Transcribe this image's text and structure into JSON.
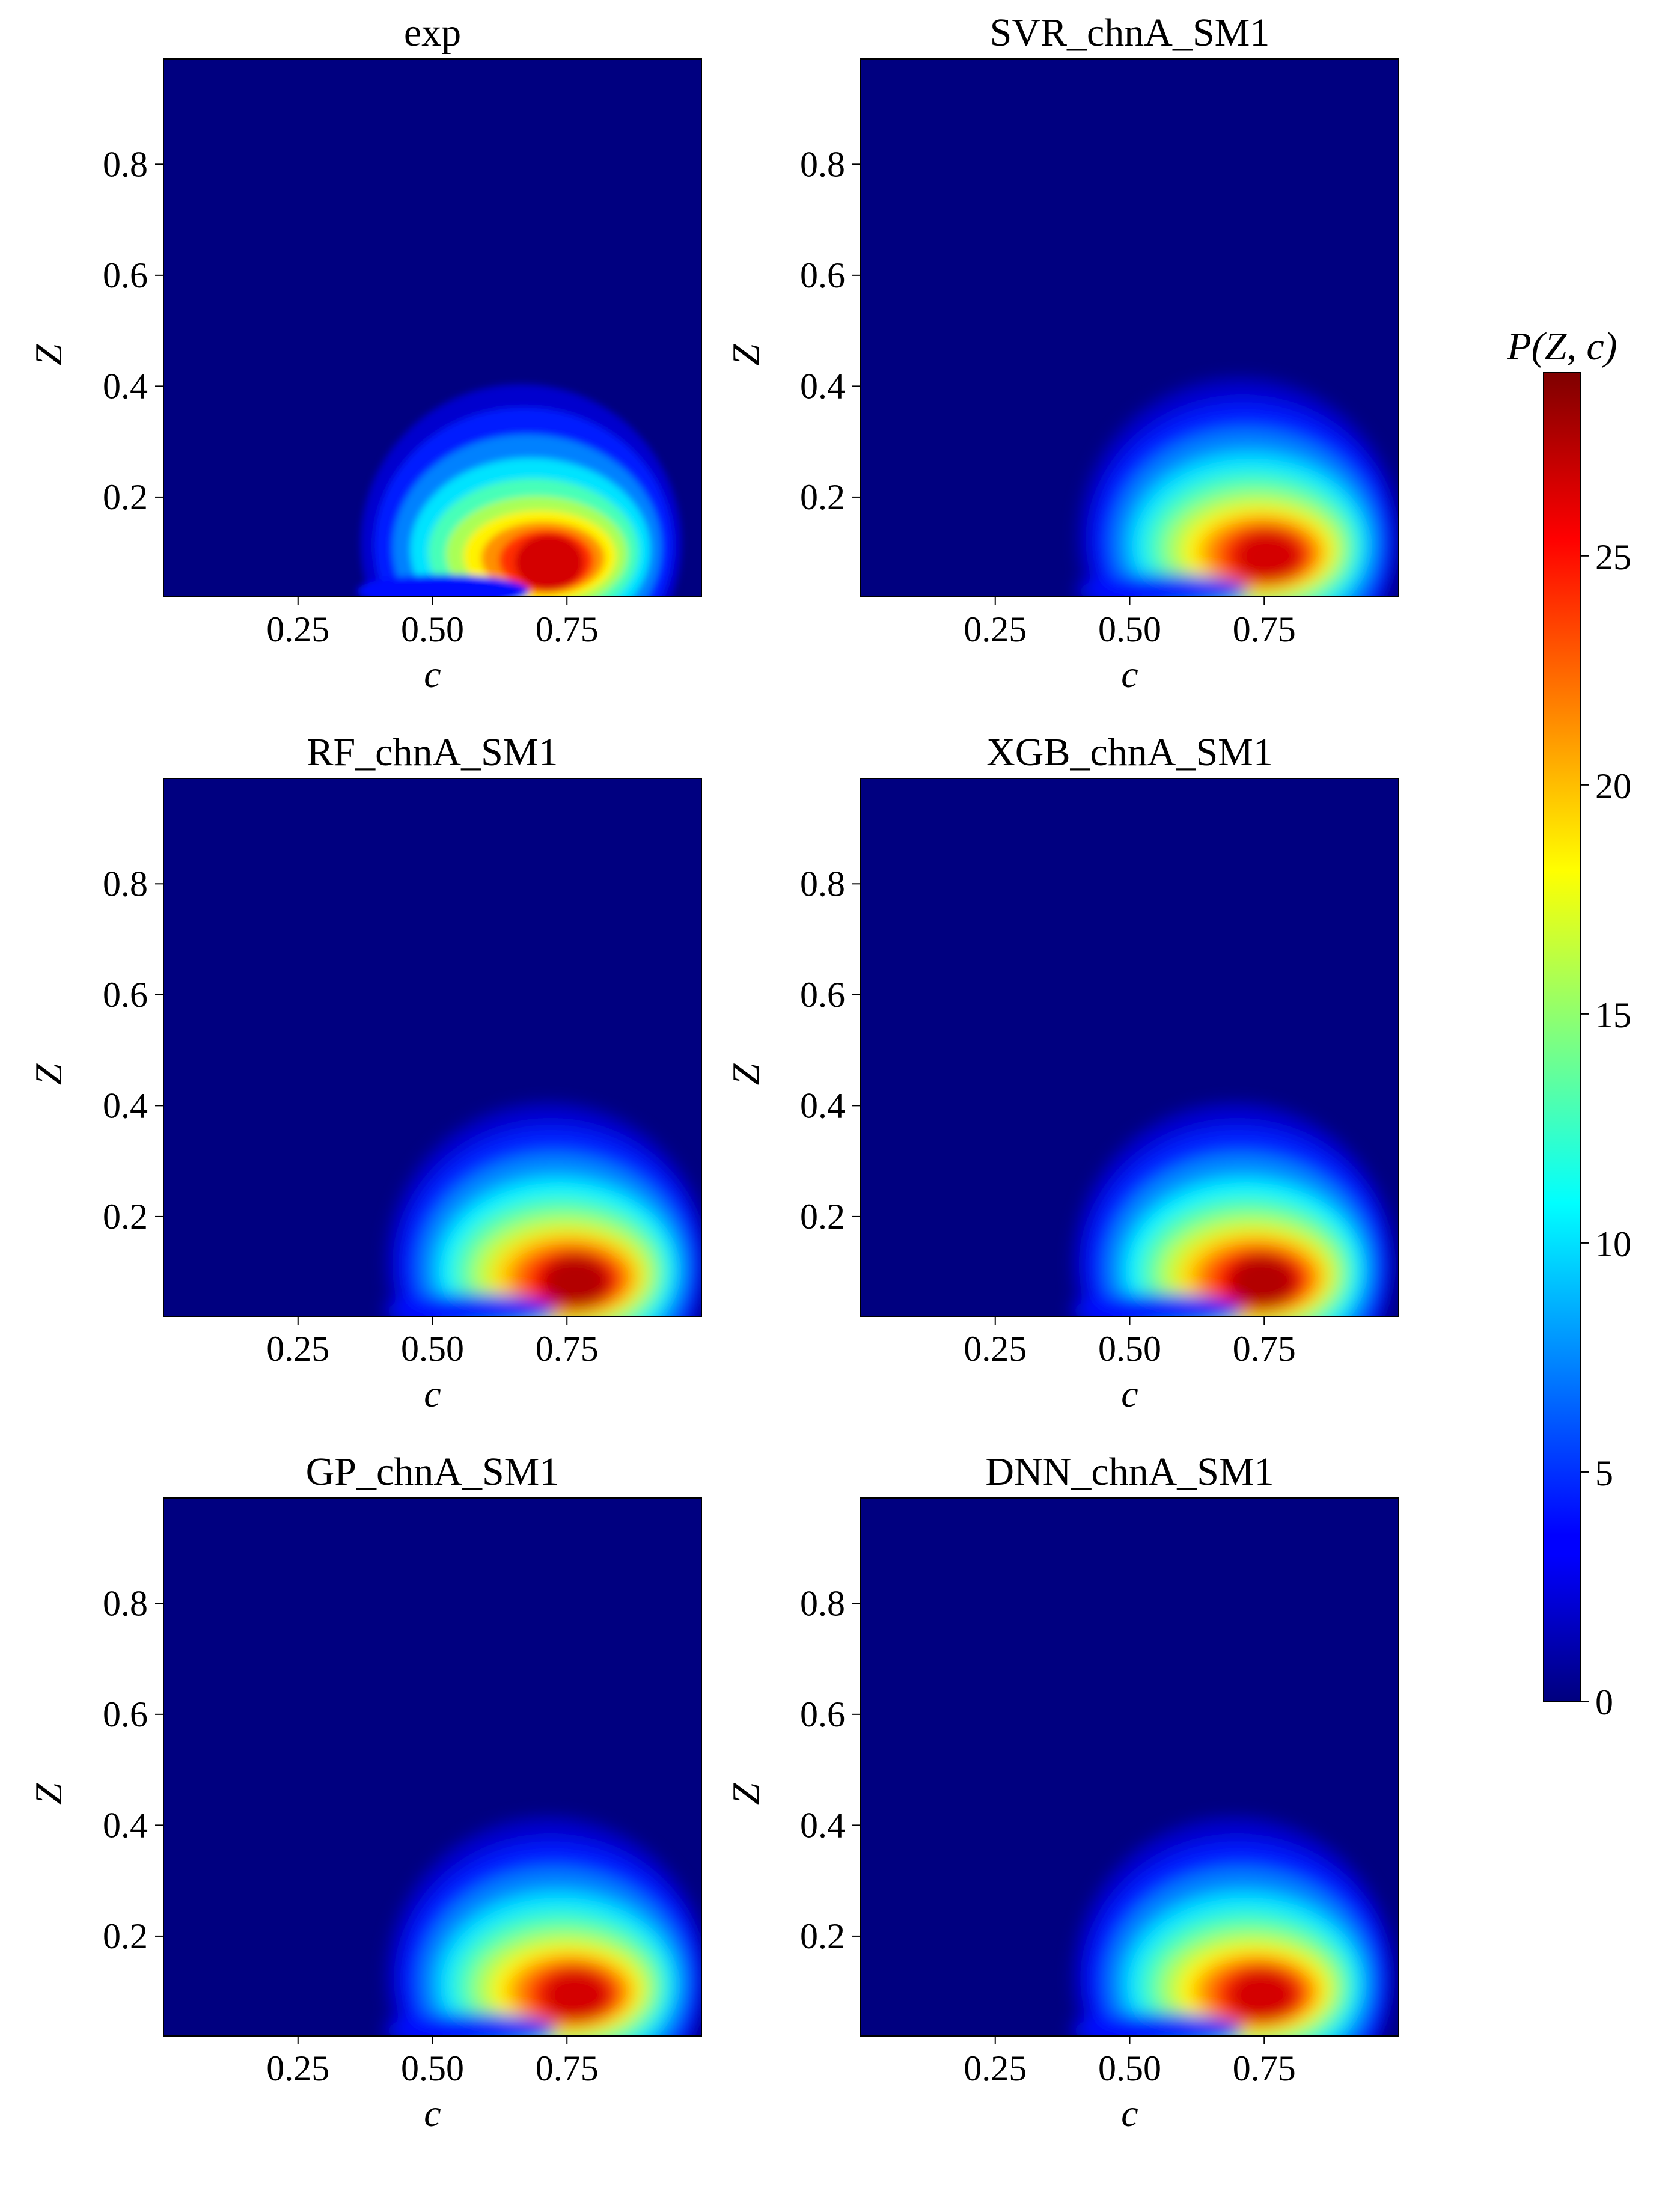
{
  "chart_data": {
    "type": "heatmap",
    "colormap": "jet",
    "colorbar": {
      "label": "P(Z, c)",
      "range": [
        0,
        29
      ],
      "ticks": [
        0,
        5,
        10,
        15,
        20,
        25
      ]
    },
    "panels": [
      {
        "title": "exp",
        "xlabel": "c",
        "ylabel": "Z",
        "xlim": [
          0.0,
          1.0
        ],
        "ylim": [
          0.02,
          0.99
        ],
        "xticks": [
          "0.25",
          "0.50",
          "0.75"
        ],
        "yticks": [
          "0.2",
          "0.4",
          "0.6",
          "0.8"
        ],
        "peak_c": 0.72,
        "peak_Z": 0.08,
        "peak_value": 28
      },
      {
        "title": "SVR_chnA_SM1",
        "xlabel": "c",
        "ylabel": "Z",
        "xlim": [
          0.0,
          1.0
        ],
        "ylim": [
          0.02,
          0.99
        ],
        "xticks": [
          "0.25",
          "0.50",
          "0.75"
        ],
        "yticks": [
          "0.2",
          "0.4",
          "0.6",
          "0.8"
        ],
        "peak_c": 0.76,
        "peak_Z": 0.09,
        "peak_value": 28
      },
      {
        "title": "RF_chnA_SM1",
        "xlabel": "c",
        "ylabel": "Z",
        "xlim": [
          0.0,
          1.0
        ],
        "ylim": [
          0.02,
          0.99
        ],
        "xticks": [
          "0.25",
          "0.50",
          "0.75"
        ],
        "yticks": [
          "0.2",
          "0.4",
          "0.6",
          "0.8"
        ],
        "peak_c": 0.77,
        "peak_Z": 0.08,
        "peak_value": 29
      },
      {
        "title": "XGB_chnA_SM1",
        "xlabel": "c",
        "ylabel": "Z",
        "xlim": [
          0.0,
          1.0
        ],
        "ylim": [
          0.02,
          0.99
        ],
        "xticks": [
          "0.25",
          "0.50",
          "0.75"
        ],
        "yticks": [
          "0.2",
          "0.4",
          "0.6",
          "0.8"
        ],
        "peak_c": 0.75,
        "peak_Z": 0.08,
        "peak_value": 29
      },
      {
        "title": "GP_chnA_SM1",
        "xlabel": "c",
        "ylabel": "Z",
        "xlim": [
          0.0,
          1.0
        ],
        "ylim": [
          0.02,
          0.99
        ],
        "xticks": [
          "0.25",
          "0.50",
          "0.75"
        ],
        "yticks": [
          "0.2",
          "0.4",
          "0.6",
          "0.8"
        ],
        "peak_c": 0.77,
        "peak_Z": 0.09,
        "peak_value": 28
      },
      {
        "title": "DNN_chnA_SM1",
        "xlabel": "c",
        "ylabel": "Z",
        "xlim": [
          0.0,
          1.0
        ],
        "ylim": [
          0.02,
          0.99
        ],
        "xticks": [
          "0.25",
          "0.50",
          "0.75"
        ],
        "yticks": [
          "0.2",
          "0.4",
          "0.6",
          "0.8"
        ],
        "peak_c": 0.75,
        "peak_Z": 0.09,
        "peak_value": 28
      }
    ]
  }
}
